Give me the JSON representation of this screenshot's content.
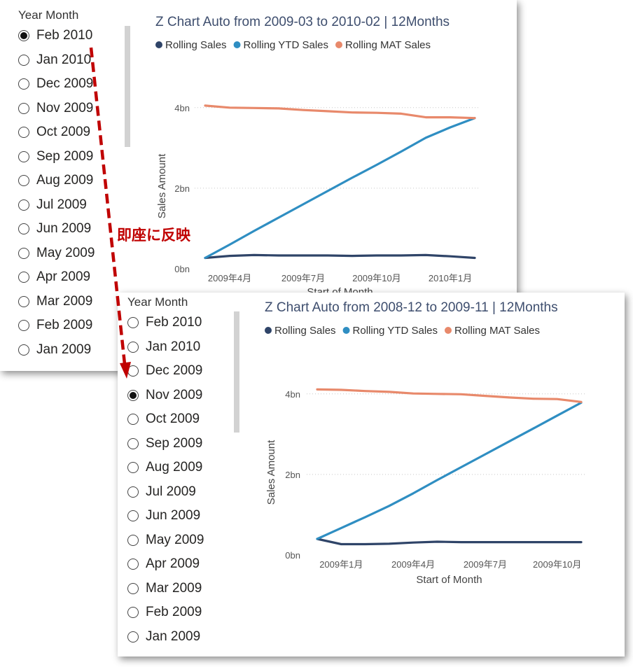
{
  "annotation": {
    "label": "即座に反映"
  },
  "legend_labels": [
    "Rolling Sales",
    "Rolling YTD Sales",
    "Rolling MAT Sales"
  ],
  "colors": {
    "rolling": "#2f4468",
    "ytd": "#2f8ec2",
    "mat": "#e8896b"
  },
  "panels": [
    {
      "slicer": {
        "title": "Year Month",
        "selected": "Feb 2010",
        "items": [
          "Feb 2010",
          "Jan 2010",
          "Dec 2009",
          "Nov 2009",
          "Oct 2009",
          "Sep 2009",
          "Aug 2009",
          "Jul 2009",
          "Jun 2009",
          "May 2009",
          "Apr 2009",
          "Mar 2009",
          "Feb 2009",
          "Jan 2009"
        ]
      }
    },
    {
      "slicer": {
        "title": "Year Month",
        "selected": "Nov 2009",
        "items": [
          "Feb 2010",
          "Jan 2010",
          "Dec 2009",
          "Nov 2009",
          "Oct 2009",
          "Sep 2009",
          "Aug 2009",
          "Jul 2009",
          "Jun 2009",
          "May 2009",
          "Apr 2009",
          "Mar 2009",
          "Feb 2009",
          "Jan 2009"
        ]
      }
    }
  ],
  "chart_data": [
    {
      "type": "line",
      "title": "Z Chart Auto from 2009-03 to 2010-02 | 12Months",
      "xlabel": "Start of Month",
      "ylabel": "Sales Amount",
      "x": [
        "2009-03",
        "2009-04",
        "2009-05",
        "2009-06",
        "2009-07",
        "2009-08",
        "2009-09",
        "2009-10",
        "2009-11",
        "2009-12",
        "2010-01",
        "2010-02"
      ],
      "x_tick_labels": [
        {
          "index": 1,
          "label": "2009年4月"
        },
        {
          "index": 4,
          "label": "2009年7月"
        },
        {
          "index": 7,
          "label": "2009年10月"
        },
        {
          "index": 10,
          "label": "2010年1月"
        }
      ],
      "y_ticks": [
        {
          "value": 0,
          "label": "0bn"
        },
        {
          "value": 2,
          "label": "2bn"
        },
        {
          "value": 4,
          "label": "4bn"
        }
      ],
      "ylim": [
        0,
        4.1
      ],
      "grid": true,
      "legend_position": "top-left",
      "series": [
        {
          "name": "Rolling Sales",
          "key": "rolling",
          "values": [
            0.27,
            0.32,
            0.34,
            0.33,
            0.33,
            0.33,
            0.32,
            0.33,
            0.33,
            0.34,
            0.31,
            0.27
          ]
        },
        {
          "name": "Rolling YTD Sales",
          "key": "ytd",
          "values": [
            0.27,
            0.6,
            0.94,
            1.27,
            1.6,
            1.93,
            2.26,
            2.58,
            2.91,
            3.25,
            3.51,
            3.74
          ]
        },
        {
          "name": "Rolling MAT Sales",
          "key": "mat",
          "values": [
            4.05,
            4.0,
            3.99,
            3.98,
            3.94,
            3.91,
            3.88,
            3.87,
            3.85,
            3.76,
            3.76,
            3.74
          ]
        }
      ]
    },
    {
      "type": "line",
      "title": "Z Chart Auto from 2008-12 to 2009-11 | 12Months",
      "xlabel": "Start of Month",
      "ylabel": "Sales Amount",
      "x": [
        "2008-12",
        "2009-01",
        "2009-02",
        "2009-03",
        "2009-04",
        "2009-05",
        "2009-06",
        "2009-07",
        "2009-08",
        "2009-09",
        "2009-10",
        "2009-11"
      ],
      "x_tick_labels": [
        {
          "index": 1,
          "label": "2009年1月"
        },
        {
          "index": 4,
          "label": "2009年4月"
        },
        {
          "index": 7,
          "label": "2009年7月"
        },
        {
          "index": 10,
          "label": "2009年10月"
        }
      ],
      "y_ticks": [
        {
          "value": 0,
          "label": "0bn"
        },
        {
          "value": 2,
          "label": "2bn"
        },
        {
          "value": 4,
          "label": "4bn"
        }
      ],
      "ylim": [
        0,
        4.1
      ],
      "grid": true,
      "legend_position": "top-left",
      "series": [
        {
          "name": "Rolling Sales",
          "key": "rolling",
          "values": [
            0.4,
            0.27,
            0.27,
            0.28,
            0.31,
            0.33,
            0.32,
            0.32,
            0.32,
            0.32,
            0.32,
            0.32
          ]
        },
        {
          "name": "Rolling YTD Sales",
          "key": "ytd",
          "values": [
            0.4,
            0.67,
            0.94,
            1.22,
            1.53,
            1.86,
            2.18,
            2.5,
            2.82,
            3.14,
            3.46,
            3.78
          ]
        },
        {
          "name": "Rolling MAT Sales",
          "key": "mat",
          "values": [
            4.11,
            4.1,
            4.07,
            4.05,
            4.01,
            4.0,
            3.99,
            3.95,
            3.91,
            3.88,
            3.87,
            3.8
          ]
        }
      ]
    }
  ]
}
